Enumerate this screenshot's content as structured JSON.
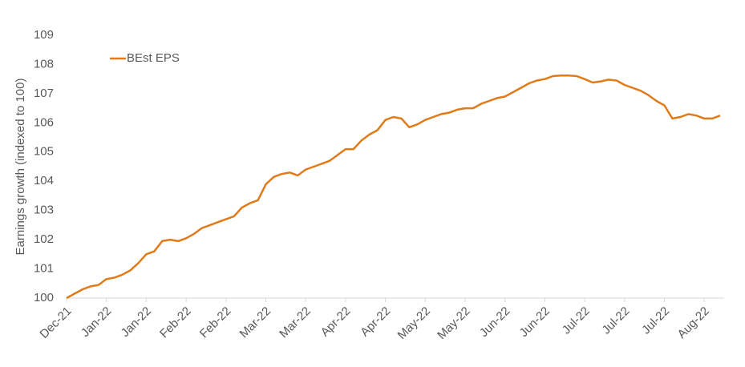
{
  "chart_data": {
    "type": "line",
    "y_label": "Earnings growth (indexed to 100)",
    "categories": [
      "Dec-21",
      null,
      null,
      null,
      null,
      "Jan-22",
      null,
      null,
      null,
      null,
      "Jan-22",
      null,
      null,
      null,
      null,
      "Feb-22",
      null,
      null,
      null,
      null,
      "Feb-22",
      null,
      null,
      null,
      null,
      "Mar-22",
      null,
      null,
      null,
      null,
      "Mar-22",
      null,
      null,
      null,
      null,
      "Apr-22",
      null,
      null,
      null,
      null,
      "Apr-22",
      null,
      null,
      null,
      null,
      "May-22",
      null,
      null,
      null,
      null,
      "May-22",
      null,
      null,
      null,
      null,
      "Jun-22",
      null,
      null,
      null,
      null,
      "Jun-22",
      null,
      null,
      null,
      null,
      "Jul-22",
      null,
      null,
      null,
      null,
      "Jul-22",
      null,
      null,
      null,
      null,
      "Jul-22",
      null,
      null,
      null,
      null,
      "Aug-22",
      null,
      null
    ],
    "series": [
      {
        "name": "BEst EPS",
        "color": "#e07b1a",
        "values": [
          100,
          100.15,
          100.3,
          100.4,
          100.45,
          100.65,
          100.7,
          100.8,
          100.95,
          101.2,
          101.5,
          101.6,
          101.95,
          102,
          101.95,
          102.05,
          102.2,
          102.4,
          102.5,
          102.6,
          102.7,
          102.8,
          103.1,
          103.25,
          103.35,
          103.9,
          104.15,
          104.25,
          104.3,
          104.2,
          104.4,
          104.5,
          104.6,
          104.7,
          104.9,
          105.1,
          105.1,
          105.4,
          105.6,
          105.75,
          106.1,
          106.2,
          106.15,
          105.85,
          105.95,
          106.1,
          106.2,
          106.3,
          106.35,
          106.45,
          106.5,
          106.5,
          106.65,
          106.75,
          106.85,
          106.9,
          107.05,
          107.2,
          107.35,
          107.45,
          107.5,
          107.6,
          107.62,
          107.62,
          107.6,
          107.5,
          107.38,
          107.42,
          107.48,
          107.45,
          107.3,
          107.2,
          107.1,
          106.95,
          106.75,
          106.6,
          106.15,
          106.2,
          106.3,
          106.25,
          106.15,
          106.15,
          106.25
        ]
      }
    ],
    "ylim": [
      100,
      109
    ],
    "yticks": [
      100,
      101,
      102,
      103,
      104,
      105,
      106,
      107,
      108,
      109
    ],
    "legend": "upper left",
    "grid": false
  }
}
